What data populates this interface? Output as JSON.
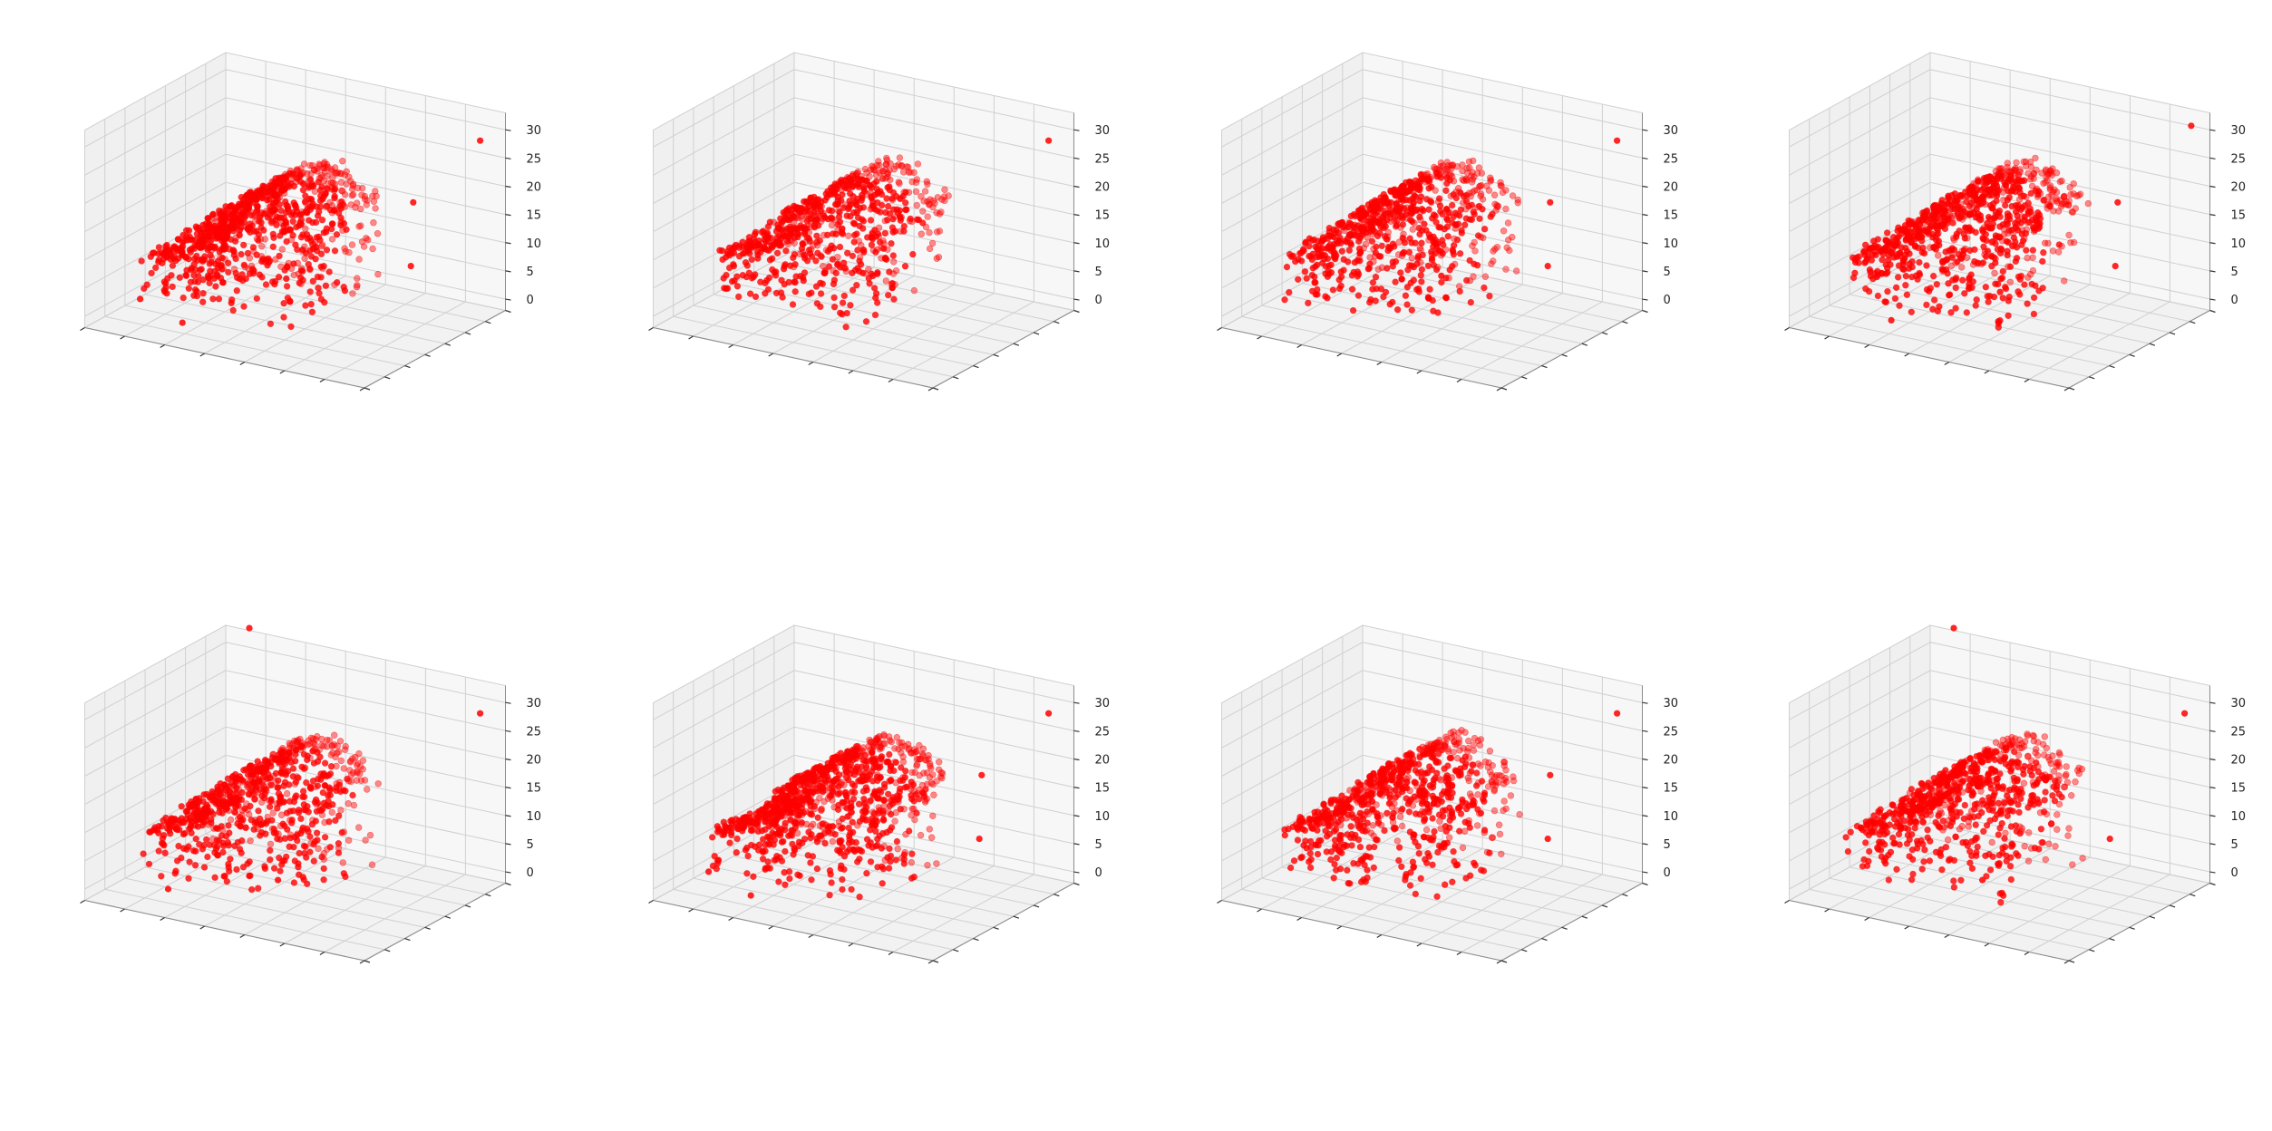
{
  "figure": {
    "layout": "2 rows x 4 columns",
    "marker_color": "#ff0000",
    "pane_color": "#f2f2f2",
    "grid_color": "#d0d0d0",
    "edge_color": "#8c8c8c"
  },
  "chart_data": [
    {
      "type": "scatter3d",
      "panel": "1",
      "xlabel": "",
      "ylabel": "",
      "zlabel": "",
      "x_tick_labels": [],
      "y_tick_labels": [],
      "z_ticks": [
        0,
        5,
        10,
        15,
        20,
        25,
        30
      ],
      "zlim": [
        0,
        30
      ],
      "grid": true,
      "n_points": 900,
      "shape": "car-like point cloud",
      "outliers": [
        [
          28,
          1.5,
          28
        ],
        [
          22,
          4,
          16
        ],
        [
          26,
          13,
          10
        ],
        [
          15,
          18,
          6
        ],
        [
          11,
          22,
          2
        ],
        [
          10,
          31,
          2
        ],
        [
          5,
          30,
          4
        ]
      ]
    },
    {
      "type": "scatter3d",
      "panel": "2",
      "xlabel": "",
      "ylabel": "",
      "zlabel": "",
      "x_tick_labels": [],
      "y_tick_labels": [],
      "z_ticks": [
        0,
        5,
        10,
        15,
        20,
        25,
        30
      ],
      "zlim": [
        0,
        30
      ],
      "grid": true,
      "n_points": 700,
      "shape": "car-like point cloud",
      "outliers": [
        [
          28,
          1.5,
          28
        ],
        [
          16,
          16,
          6
        ]
      ]
    },
    {
      "type": "scatter3d",
      "panel": "3",
      "xlabel": "",
      "ylabel": "",
      "zlabel": "",
      "x_tick_labels": [],
      "y_tick_labels": [],
      "z_ticks": [
        0,
        5,
        10,
        15,
        20,
        25,
        30
      ],
      "zlim": [
        0,
        30
      ],
      "grid": true,
      "n_points": 750,
      "shape": "car-like point cloud",
      "outliers": [
        [
          28,
          1.5,
          28
        ],
        [
          22,
          4,
          16
        ],
        [
          26,
          13,
          10
        ],
        [
          16,
          16,
          6
        ]
      ]
    },
    {
      "type": "scatter3d",
      "panel": "4",
      "xlabel": "",
      "ylabel": "",
      "zlabel": "",
      "x_tick_labels": [],
      "y_tick_labels": [],
      "z_ticks": [
        0,
        5,
        10,
        15,
        20,
        25,
        30
      ],
      "zlim": [
        0,
        30
      ],
      "grid": true,
      "n_points": 850,
      "shape": "car-like point cloud",
      "outliers": [
        [
          28,
          0,
          30
        ],
        [
          22,
          4,
          16
        ],
        [
          26,
          13,
          10
        ],
        [
          16,
          18,
          4
        ],
        [
          10,
          30,
          2
        ]
      ]
    },
    {
      "type": "scatter3d",
      "panel": "5",
      "xlabel": "",
      "ylabel": "",
      "zlabel": "",
      "x_tick_labels": [],
      "y_tick_labels": [],
      "z_ticks": [
        0,
        5,
        10,
        15,
        20,
        25,
        30
      ],
      "zlim": [
        0,
        30
      ],
      "grid": true,
      "n_points": 750,
      "shape": "car-like point cloud",
      "outliers": [
        [
          28,
          1.5,
          28
        ],
        [
          3,
          1,
          34
        ],
        [
          16,
          22,
          3
        ],
        [
          8,
          30,
          2
        ]
      ]
    },
    {
      "type": "scatter3d",
      "panel": "6",
      "xlabel": "",
      "ylabel": "",
      "zlabel": "",
      "x_tick_labels": [],
      "y_tick_labels": [],
      "z_ticks": [
        0,
        5,
        10,
        15,
        20,
        25,
        30
      ],
      "zlim": [
        0,
        30
      ],
      "grid": true,
      "n_points": 950,
      "shape": "car-like point cloud",
      "outliers": [
        [
          28,
          1.5,
          28
        ],
        [
          22,
          4,
          16
        ],
        [
          26,
          13,
          10
        ],
        [
          15,
          18,
          6
        ],
        [
          11,
          22,
          2
        ],
        [
          10,
          31,
          2
        ],
        [
          5,
          30,
          4
        ]
      ]
    },
    {
      "type": "scatter3d",
      "panel": "7",
      "xlabel": "",
      "ylabel": "",
      "zlabel": "",
      "x_tick_labels": [],
      "y_tick_labels": [],
      "z_ticks": [
        0,
        5,
        10,
        15,
        20,
        25,
        30
      ],
      "zlim": [
        0,
        30
      ],
      "grid": true,
      "n_points": 750,
      "shape": "car-like point cloud",
      "outliers": [
        [
          28,
          1.5,
          28
        ],
        [
          22,
          4,
          16
        ],
        [
          26,
          13,
          10
        ]
      ]
    },
    {
      "type": "scatter3d",
      "panel": "8",
      "xlabel": "",
      "ylabel": "",
      "zlabel": "",
      "x_tick_labels": [],
      "y_tick_labels": [],
      "z_ticks": [
        0,
        5,
        10,
        15,
        20,
        25,
        30
      ],
      "zlim": [
        0,
        30
      ],
      "grid": true,
      "n_points": 750,
      "shape": "car-like point cloud",
      "outliers": [
        [
          28,
          1.5,
          28
        ],
        [
          3,
          1,
          34
        ],
        [
          24,
          10,
          8
        ],
        [
          16,
          22,
          3
        ]
      ]
    }
  ]
}
